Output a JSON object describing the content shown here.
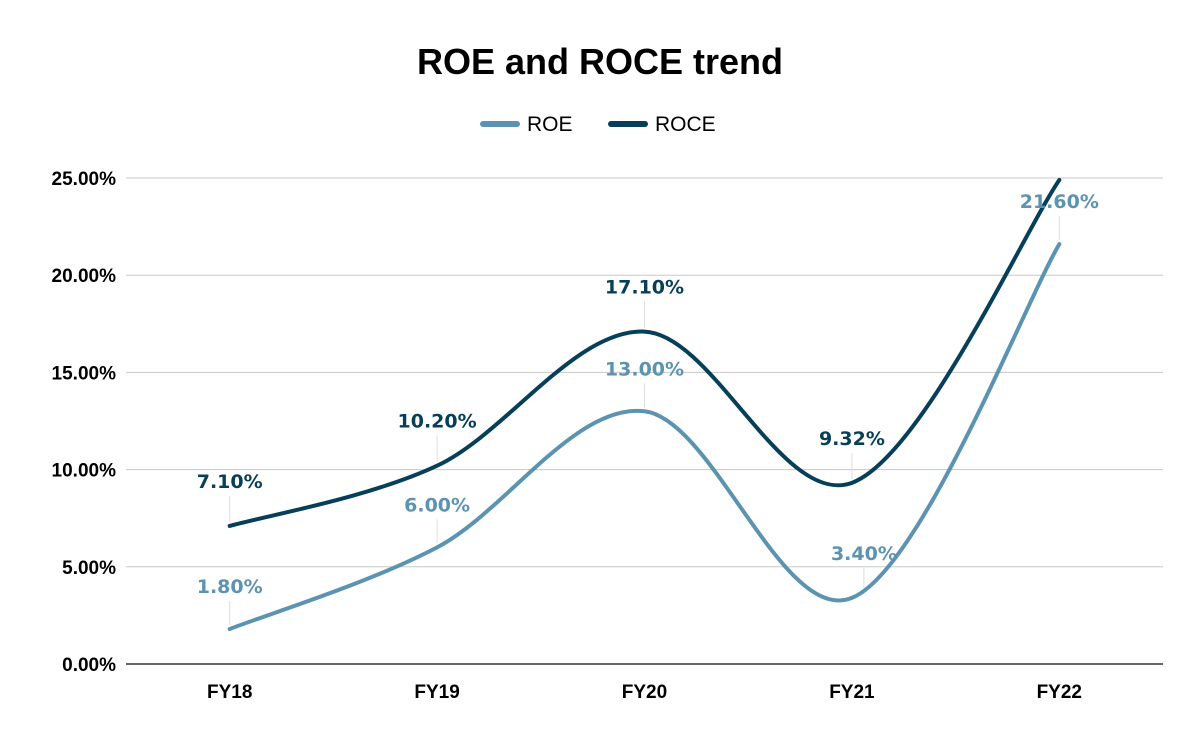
{
  "chart_data": {
    "type": "line",
    "title": "ROE and ROCE trend",
    "xlabel": "",
    "ylabel": "",
    "categories": [
      "FY18",
      "FY19",
      "FY20",
      "FY21",
      "FY22"
    ],
    "series": [
      {
        "name": "ROE",
        "color": "#5b93b1",
        "values": [
          1.8,
          6.0,
          13.0,
          3.4,
          21.6
        ],
        "labels": [
          "1.80%",
          "6.00%",
          "13.00%",
          "3.40%",
          "21.60%"
        ]
      },
      {
        "name": "ROCE",
        "color": "#073f58",
        "values": [
          7.1,
          10.2,
          17.1,
          9.32,
          24.9
        ],
        "labels": [
          "7.10%",
          "10.20%",
          "17.10%",
          "9.32%",
          ""
        ]
      }
    ],
    "ylim": [
      0,
      25
    ],
    "yticks": [
      0,
      5,
      10,
      15,
      20,
      25
    ],
    "ytick_labels": [
      "0.00%",
      "5.00%",
      "10.00%",
      "15.00%",
      "20.00%",
      "25.00%"
    ],
    "grid": true,
    "smooth": true,
    "legend": "top-center"
  }
}
